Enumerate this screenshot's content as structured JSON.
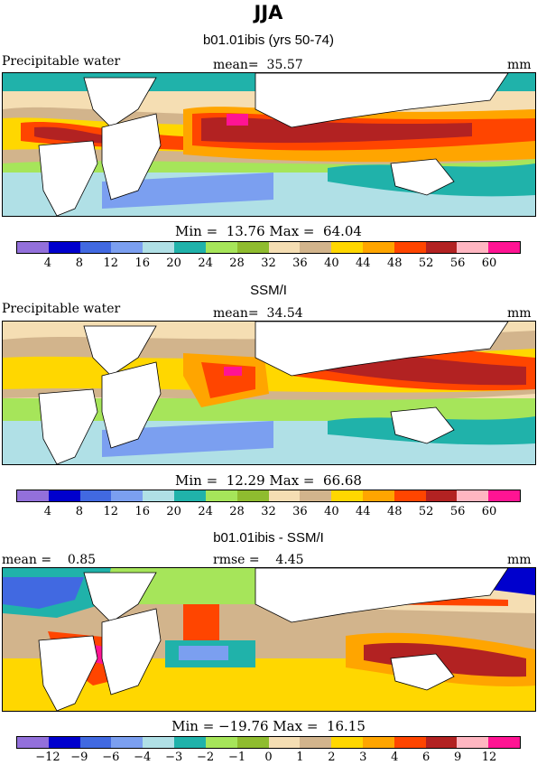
{
  "figure": {
    "title": "JJA"
  },
  "panels": [
    {
      "subtitle": "b01.01ibis (yrs 50-74)",
      "left_label": "Precipitable water",
      "center_label": "mean=  35.57",
      "units": "mm",
      "minmax": "Min =  13.76 Max =  64.04",
      "colorbar": {
        "colors": [
          "#9370db",
          "#0000cd",
          "#4169e1",
          "#7b9ff0",
          "#b0e0e6",
          "#20b2aa",
          "#a6e55a",
          "#8fbc2f",
          "#f5deb3",
          "#d2b48c",
          "#ffd700",
          "#ffa500",
          "#ff4500",
          "#b22222",
          "#ffb6c1",
          "#ff1493"
        ],
        "ticks": [
          "4",
          "8",
          "12",
          "16",
          "20",
          "24",
          "28",
          "32",
          "36",
          "40",
          "44",
          "48",
          "52",
          "56",
          "60"
        ]
      }
    },
    {
      "subtitle": "SSM/I",
      "left_label": "Precipitable water",
      "center_label": "mean=  34.54",
      "units": "mm",
      "minmax": "Min =  12.29 Max =  66.68",
      "colorbar": {
        "colors": [
          "#9370db",
          "#0000cd",
          "#4169e1",
          "#7b9ff0",
          "#b0e0e6",
          "#20b2aa",
          "#a6e55a",
          "#8fbc2f",
          "#f5deb3",
          "#d2b48c",
          "#ffd700",
          "#ffa500",
          "#ff4500",
          "#b22222",
          "#ffb6c1",
          "#ff1493"
        ],
        "ticks": [
          "4",
          "8",
          "12",
          "16",
          "20",
          "24",
          "28",
          "32",
          "36",
          "40",
          "44",
          "48",
          "52",
          "56",
          "60"
        ]
      }
    },
    {
      "subtitle": "b01.01ibis - SSM/I",
      "left_label": "mean =    0.85",
      "center_label": "rmse =    4.45",
      "units": "mm",
      "minmax": "Min = −19.76 Max =  16.15",
      "colorbar": {
        "colors": [
          "#9370db",
          "#0000cd",
          "#4169e1",
          "#7b9ff0",
          "#b0e0e6",
          "#20b2aa",
          "#a6e55a",
          "#8fbc2f",
          "#f5deb3",
          "#d2b48c",
          "#ffd700",
          "#ffa500",
          "#ff4500",
          "#b22222",
          "#ffb6c1",
          "#ff1493"
        ],
        "ticks": [
          "−12",
          "−9",
          "−6",
          "−4",
          "−3",
          "−2",
          "−1",
          "0",
          "1",
          "2",
          "3",
          "4",
          "6",
          "9",
          "12"
        ]
      }
    }
  ]
}
